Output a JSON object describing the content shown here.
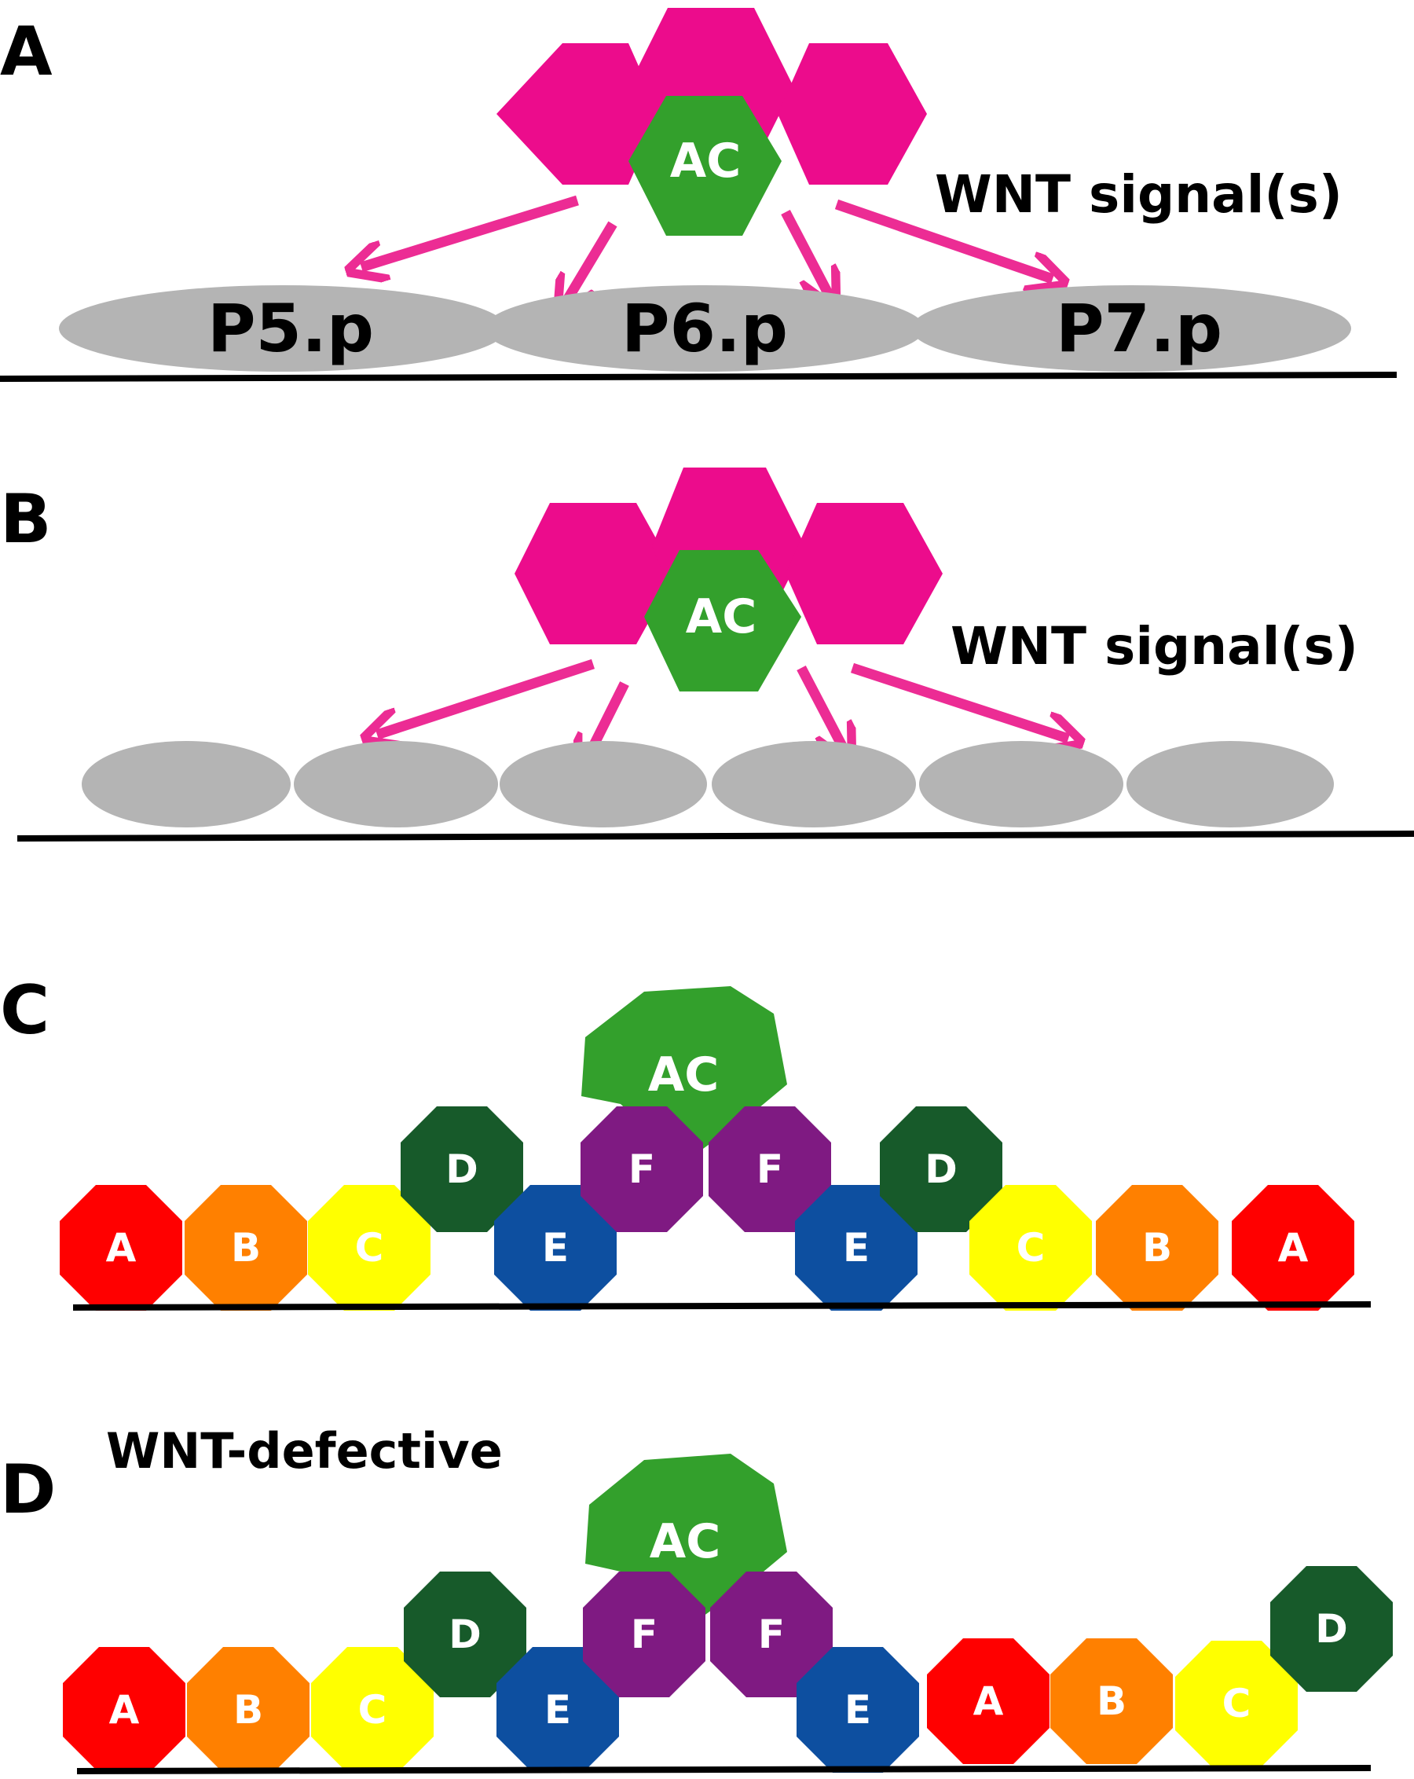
{
  "panels": [
    {
      "letter": "A",
      "signal_label": "WNT signal(s)",
      "anchor_label": "AC",
      "cells": [
        "P5.p",
        "P6.p",
        "P7.p"
      ]
    },
    {
      "letter": "B",
      "signal_label": "WNT signal(s)",
      "anchor_label": "AC"
    },
    {
      "letter": "C",
      "anchor_label": "AC",
      "cells": [
        "A",
        "B",
        "C",
        "D",
        "E",
        "F",
        "F",
        "E",
        "D",
        "C",
        "B",
        "A"
      ]
    },
    {
      "letter": "D",
      "title": "WNT-defective",
      "anchor_label": "AC",
      "cells": [
        "A",
        "B",
        "C",
        "D",
        "E",
        "F",
        "F",
        "E",
        "A",
        "B",
        "C",
        "D"
      ]
    }
  ],
  "colors": {
    "gonad": "#EC0C8C",
    "anchor_cell": "#33A02C",
    "signal_arrow": "#EC2C94",
    "vpc_gray": "#B4B4B4",
    "fate_A": "#FF0000",
    "fate_B": "#FF8000",
    "fate_C": "#FFFF00",
    "fate_D": "#175A2A",
    "fate_E": "#0D4FA0",
    "fate_F": "#7F1A82"
  }
}
